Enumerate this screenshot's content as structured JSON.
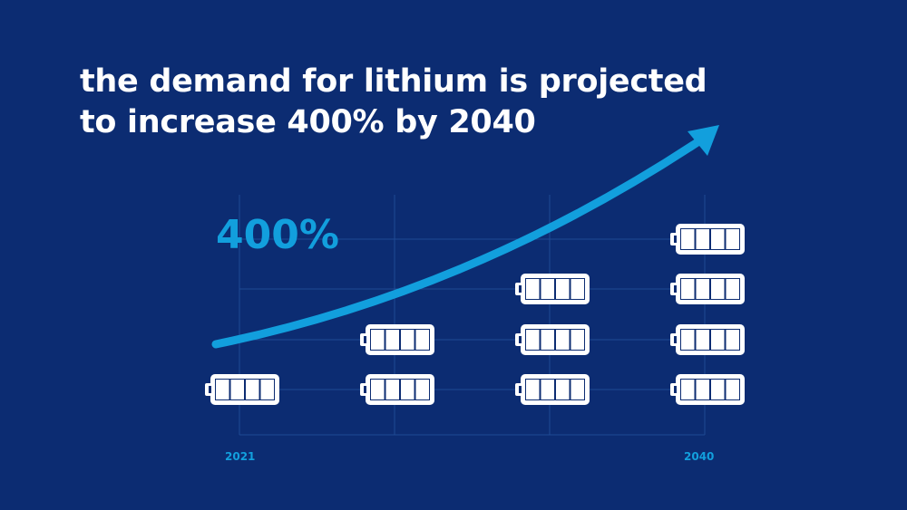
{
  "title": {
    "line1": "the demand for lithium is projected",
    "line2": "to increase 400% by 2040"
  },
  "colors": {
    "background": "#0c2c72",
    "accent": "#129fdd",
    "grid": "#1e4a94",
    "battery": "#ffffff"
  },
  "chart_data": {
    "type": "bar",
    "style": "pictogram",
    "icon": "battery-icon",
    "categories": [
      "2021",
      "",
      "",
      "2040"
    ],
    "values": [
      1,
      2,
      3,
      4
    ],
    "annotation": "400%",
    "x_tick_labels": [
      "2021",
      "2040"
    ],
    "trend": "increasing arrow",
    "grid": true
  }
}
